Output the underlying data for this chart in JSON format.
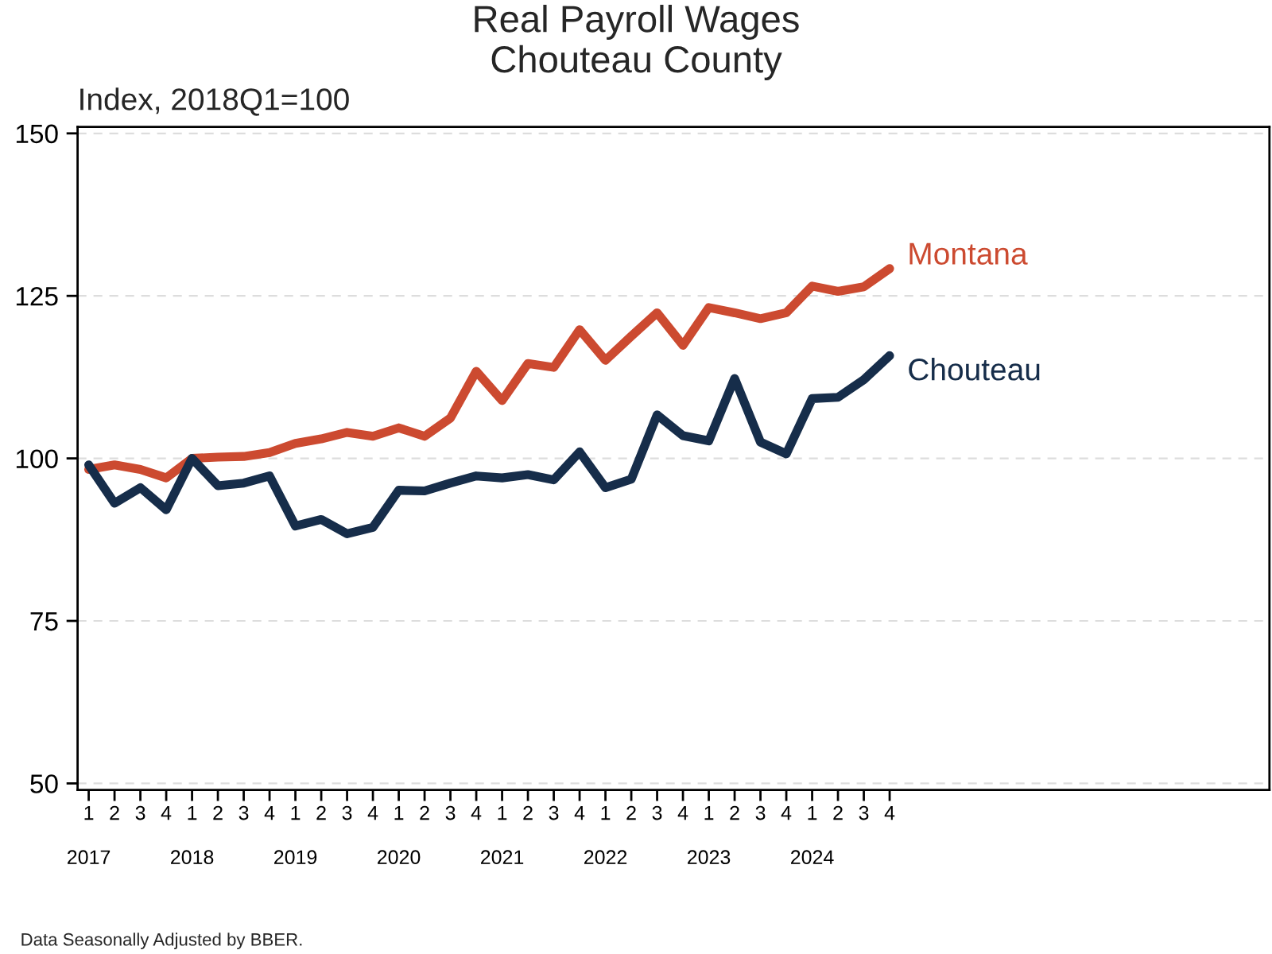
{
  "chart_data": {
    "type": "line",
    "title": "Real Payroll Wages\nChouteau County",
    "ylabel": "Index, 2018Q1=100",
    "categories": [
      "1\n\n2017",
      "2",
      "3",
      "4",
      "1\n\n2018",
      "2",
      "3",
      "4",
      "1\n\n2019",
      "2",
      "3",
      "4",
      "1\n\n2020",
      "2",
      "3",
      "4",
      "1\n\n2021",
      "2",
      "3",
      "4",
      "1\n\n2022",
      "2",
      "3",
      "4",
      "1\n\n2023",
      "2",
      "3",
      "4",
      "1\n\n2024",
      "2",
      "3",
      "4"
    ],
    "series": [
      {
        "name": "Montana",
        "color": "#cc4a30",
        "values": [
          98.3,
          99.0,
          98.3,
          97.0,
          100,
          100.2,
          100.3,
          100.9,
          102.3,
          103.0,
          104.0,
          103.4,
          104.7,
          103.4,
          106.2,
          113.4,
          108.9,
          114.6,
          114.0,
          119.8,
          115.1,
          118.8,
          122.4,
          117.4,
          123.2,
          122.4,
          121.5,
          122.4,
          126.5,
          125.7,
          126.4,
          129.2
        ]
      },
      {
        "name": "Chouteau",
        "color": "#162d4a",
        "values": [
          99.0,
          93.1,
          95.5,
          92.1,
          100,
          95.8,
          96.2,
          97.3,
          89.6,
          90.6,
          88.4,
          89.4,
          95.1,
          95.0,
          96.2,
          97.3,
          97.0,
          97.5,
          96.7,
          101.0,
          95.5,
          96.8,
          106.7,
          103.5,
          102.7,
          112.3,
          102.5,
          100.7,
          109.2,
          109.4,
          112.1,
          115.8
        ]
      }
    ],
    "ylim": [
      49,
      151
    ],
    "yticks": [
      50,
      75,
      100,
      125,
      150
    ],
    "grid": "y",
    "legend": false,
    "marker": "none",
    "line_style": "solid",
    "annotations": [
      "Data Seasonally Adjusted by BBER."
    ]
  }
}
